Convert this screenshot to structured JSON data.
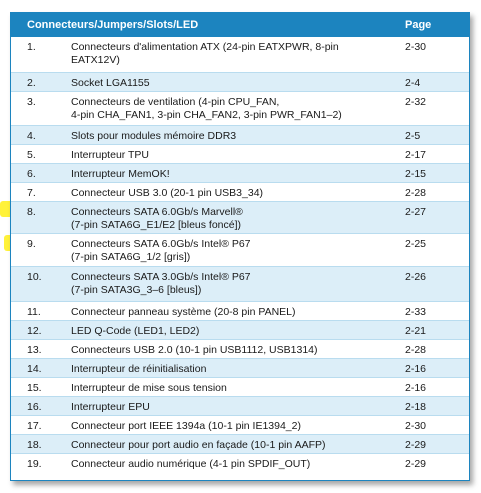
{
  "table": {
    "header": {
      "title": "Connecteurs/Jumpers/Slots/LED",
      "page": "Page"
    },
    "rows": [
      {
        "num": "1.",
        "lines": [
          "Connecteurs d'alimentation ATX (24-pin EATXPWR, 8-pin",
          "EATX12V)"
        ],
        "page": "2-30"
      },
      {
        "num": "2.",
        "lines": [
          "Socket LGA1155"
        ],
        "page": "2-4"
      },
      {
        "num": "3.",
        "lines": [
          "Connecteurs de ventilation (4-pin CPU_FAN,",
          "4-pin CHA_FAN1, 3-pin CHA_FAN2, 3-pin PWR_FAN1–2)"
        ],
        "page": "2-32"
      },
      {
        "num": "4.",
        "lines": [
          "Slots pour modules mémoire DDR3"
        ],
        "page": "2-5"
      },
      {
        "num": "5.",
        "lines": [
          "Interrupteur TPU"
        ],
        "page": "2-17"
      },
      {
        "num": "6.",
        "lines": [
          "Interrupteur MemOK!"
        ],
        "page": "2-15"
      },
      {
        "num": "7.",
        "lines": [
          "Connecteur USB 3.0 (20-1 pin USB3_34)"
        ],
        "page": "2-28"
      },
      {
        "num": "8.",
        "lines": [
          "Connecteurs SATA 6.0Gb/s Marvell®",
          "(7-pin SATA6G_E1/E2 [bleus foncé])"
        ],
        "page": "2-27"
      },
      {
        "num": "9.",
        "lines": [
          "Connecteurs SATA 6.0Gb/s Intel® P67",
          "(7-pin SATA6G_1/2 [gris])"
        ],
        "page": "2-25"
      },
      {
        "num": "10.",
        "lines": [
          "Connecteurs SATA 3.0Gb/s Intel® P67",
          "(7-pin SATA3G_3–6 [bleus])"
        ],
        "page": "2-26"
      },
      {
        "num": "11.",
        "lines": [
          "Connecteur panneau système (20-8 pin PANEL)"
        ],
        "page": "2-33"
      },
      {
        "num": "12.",
        "lines": [
          "LED Q-Code (LED1, LED2)"
        ],
        "page": "2-21"
      },
      {
        "num": "13.",
        "lines": [
          "Connecteurs USB 2.0 (10-1 pin USB1112, USB1314)"
        ],
        "page": "2-28"
      },
      {
        "num": "14.",
        "lines": [
          "Interrupteur de réinitialisation"
        ],
        "page": "2-16"
      },
      {
        "num": "15.",
        "lines": [
          "Interrupteur de mise sous tension"
        ],
        "page": "2-16"
      },
      {
        "num": "16.",
        "lines": [
          "Interrupteur EPU"
        ],
        "page": "2-18"
      },
      {
        "num": "17.",
        "lines": [
          "Connecteur port IEEE 1394a (10-1 pin IE1394_2)"
        ],
        "page": "2-30"
      },
      {
        "num": "18.",
        "lines": [
          "Connecteur pour port audio en façade (10-1 pin AAFP)"
        ],
        "page": "2-29"
      },
      {
        "num": "19.",
        "lines": [
          "Connecteur audio numérique (4-1 pin SPDIF_OUT)"
        ],
        "page": "2-29"
      }
    ],
    "highlighted_rows": [
      "8.",
      "9."
    ]
  },
  "colors": {
    "header_bg": "#1c84bf",
    "alt_row_bg": "#dceef8",
    "row_divider": "#b9dcef",
    "highlight": "#fff23a"
  }
}
